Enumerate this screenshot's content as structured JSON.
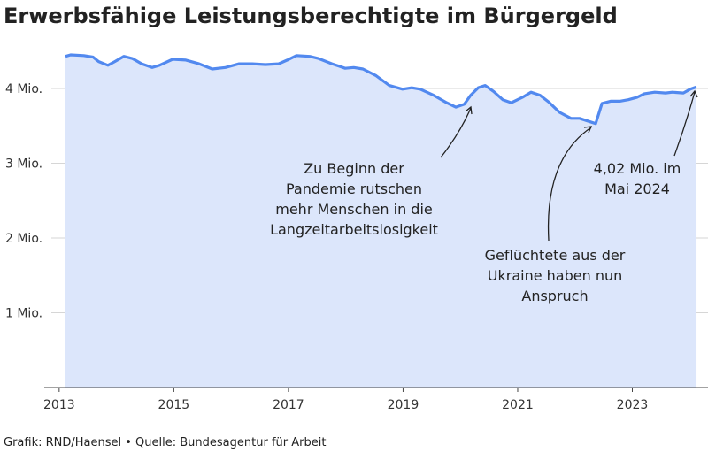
{
  "chart_data": {
    "type": "area",
    "title": "Erwerbsfähige Leistungsberechtigte im Bürgergeld",
    "source": "Grafik: RND/Haensel • Quelle: Bundesagentur für Arbeit",
    "x": [
      2013.11,
      2013.2,
      2013.43,
      2013.59,
      2013.69,
      2013.85,
      2013.97,
      2014.13,
      2014.28,
      2014.44,
      2014.62,
      2014.75,
      2014.98,
      2015.21,
      2015.44,
      2015.67,
      2015.9,
      2016.14,
      2016.37,
      2016.6,
      2016.83,
      2016.98,
      2017.14,
      2017.37,
      2017.53,
      2017.76,
      2017.99,
      2018.14,
      2018.3,
      2018.53,
      2018.76,
      2018.99,
      2019.15,
      2019.3,
      2019.53,
      2019.76,
      2019.92,
      2020.07,
      2020.18,
      2020.31,
      2020.43,
      2020.58,
      2020.74,
      2020.89,
      2021.08,
      2021.23,
      2021.39,
      2021.54,
      2021.73,
      2021.93,
      2022.08,
      2022.24,
      2022.36,
      2022.47,
      2022.62,
      2022.78,
      2022.93,
      2023.08,
      2023.21,
      2023.39,
      2023.58,
      2023.7,
      2023.89,
      2024.01,
      2024.12
    ],
    "values": [
      4.43,
      4.45,
      4.44,
      4.42,
      4.36,
      4.31,
      4.36,
      4.43,
      4.4,
      4.33,
      4.28,
      4.31,
      4.39,
      4.38,
      4.33,
      4.26,
      4.28,
      4.33,
      4.33,
      4.32,
      4.33,
      4.38,
      4.44,
      4.43,
      4.4,
      4.33,
      4.27,
      4.28,
      4.26,
      4.17,
      4.04,
      3.99,
      4.01,
      3.99,
      3.91,
      3.81,
      3.75,
      3.79,
      3.91,
      4.01,
      4.04,
      3.96,
      3.85,
      3.81,
      3.88,
      3.95,
      3.91,
      3.82,
      3.68,
      3.6,
      3.6,
      3.56,
      3.53,
      3.8,
      3.83,
      3.83,
      3.85,
      3.88,
      3.93,
      3.95,
      3.94,
      3.95,
      3.94,
      3.99,
      4.02
    ],
    "color": "#5289ef",
    "fill": "#dce6fb",
    "xlim": [
      2012.74,
      2024.32
    ],
    "xticks": [
      2013,
      2015,
      2017,
      2019,
      2021,
      2023
    ],
    "ylim": [
      0,
      4.6
    ],
    "yticks": [
      {
        "value": 1,
        "label": "1 Mio."
      },
      {
        "value": 2,
        "label": "2 Mio."
      },
      {
        "value": 3,
        "label": "3 Mio."
      },
      {
        "value": 4,
        "label": "4 Mio."
      }
    ],
    "grid": true,
    "annotations": [
      {
        "lines": [
          "Zu Beginn der",
          "Pandemie rutschen",
          "mehr Menschen in die",
          "Langzeitarbeitslosigkeit"
        ]
      },
      {
        "lines": [
          "Geflüchtete aus der",
          "Ukraine haben nun",
          "Anspruch"
        ]
      },
      {
        "lines": [
          "4,02 Mio. im",
          "Mai 2024"
        ]
      }
    ]
  }
}
